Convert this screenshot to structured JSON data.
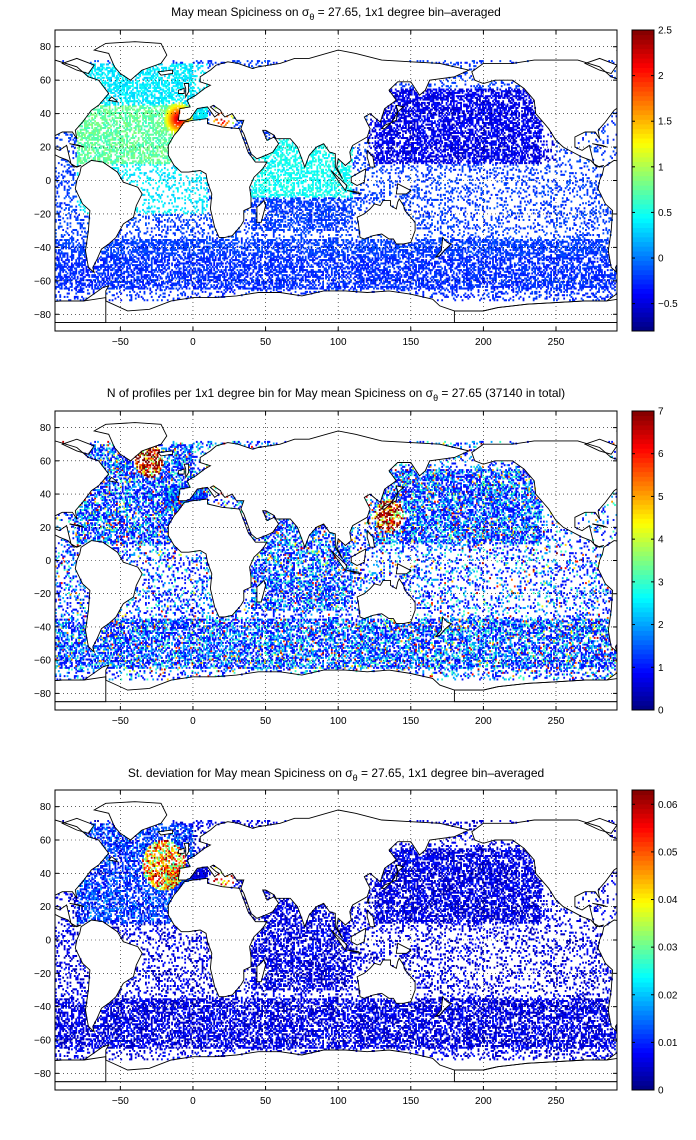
{
  "chart_data": [
    {
      "type": "heatmap",
      "title_parts": [
        "May mean Spiciness on ",
        "σ",
        "θ",
        " = 27.65, 1x1 degree bin–averaged"
      ],
      "xlim": [
        -95,
        292
      ],
      "ylim": [
        -90,
        90
      ],
      "xticks": [
        -50,
        0,
        50,
        100,
        150,
        200,
        250
      ],
      "xtick_labels": [
        "−50",
        "0",
        "50",
        "100",
        "150",
        "200",
        "250"
      ],
      "yticks": [
        80,
        60,
        40,
        20,
        0,
        -20,
        -40,
        -60,
        -80
      ],
      "ytick_labels": [
        "80",
        "60",
        "40",
        "20",
        "0",
        "−20",
        "−40",
        "−60",
        "−80"
      ],
      "grid": true,
      "colormap": "jet",
      "colorbar": {
        "range": [
          -0.8,
          2.5
        ],
        "ticks": [
          2.5,
          2,
          1.5,
          1,
          0.5,
          0,
          -0.5
        ],
        "labels": [
          "2.5",
          "2",
          "1.5",
          "1",
          "0.5",
          "0",
          "−0.5"
        ]
      },
      "field": "spice",
      "hotspots": [
        {
          "lon": -10,
          "lat": 37,
          "value": 2.4,
          "radius": 10
        },
        {
          "lon": 20,
          "lat": 37,
          "value": 2.5,
          "radius": 8
        }
      ]
    },
    {
      "type": "heatmap",
      "title_parts": [
        "N of profiles per 1x1 degree bin for May mean Spiciness on ",
        "σ",
        "θ",
        " = 27.65 (37140 in total)"
      ],
      "xlim": [
        -95,
        292
      ],
      "ylim": [
        -90,
        90
      ],
      "xticks": [
        -50,
        0,
        50,
        100,
        150,
        200,
        250
      ],
      "xtick_labels": [
        "−50",
        "0",
        "50",
        "100",
        "150",
        "200",
        "250"
      ],
      "yticks": [
        80,
        60,
        40,
        20,
        0,
        -20,
        -40,
        -60,
        -80
      ],
      "ytick_labels": [
        "80",
        "60",
        "40",
        "20",
        "0",
        "−20",
        "−40",
        "−60",
        "−80"
      ],
      "grid": true,
      "colormap": "jet",
      "colorbar": {
        "range": [
          0,
          7
        ],
        "ticks": [
          7,
          6,
          5,
          4,
          3,
          2,
          1,
          0
        ],
        "labels": [
          "7",
          "6",
          "5",
          "4",
          "3",
          "2",
          "1",
          "0"
        ]
      },
      "field": "count",
      "hotspots": [
        {
          "lon": -30,
          "lat": 60,
          "value": 7,
          "radius": 10
        },
        {
          "lon": 135,
          "lat": 27,
          "value": 7,
          "radius": 10
        }
      ]
    },
    {
      "type": "heatmap",
      "title_parts": [
        "St. deviation for May mean Spiciness on ",
        "σ",
        "θ",
        " = 27.65, 1x1 degree bin–averaged"
      ],
      "xlim": [
        -95,
        292
      ],
      "ylim": [
        -90,
        90
      ],
      "xticks": [
        -50,
        0,
        50,
        100,
        150,
        200,
        250
      ],
      "xtick_labels": [
        "−50",
        "0",
        "50",
        "100",
        "150",
        "200",
        "250"
      ],
      "yticks": [
        80,
        60,
        40,
        20,
        0,
        -20,
        -40,
        -60,
        -80
      ],
      "ytick_labels": [
        "80",
        "60",
        "40",
        "20",
        "0",
        "−20",
        "−40",
        "−60",
        "−80"
      ],
      "grid": true,
      "colormap": "jet",
      "colorbar": {
        "range": [
          0,
          0.063
        ],
        "ticks": [
          0.06,
          0.05,
          0.04,
          0.03,
          0.02,
          0.01,
          0
        ],
        "labels": [
          "0.06",
          "0.05",
          "0.04",
          "0.03",
          "0.02",
          "0.01",
          "0"
        ]
      },
      "field": "std",
      "hotspots": [
        {
          "lon": -20,
          "lat": 45,
          "value": 0.063,
          "radius": 15
        },
        {
          "lon": 20,
          "lat": 37,
          "value": 0.063,
          "radius": 8
        }
      ]
    }
  ]
}
